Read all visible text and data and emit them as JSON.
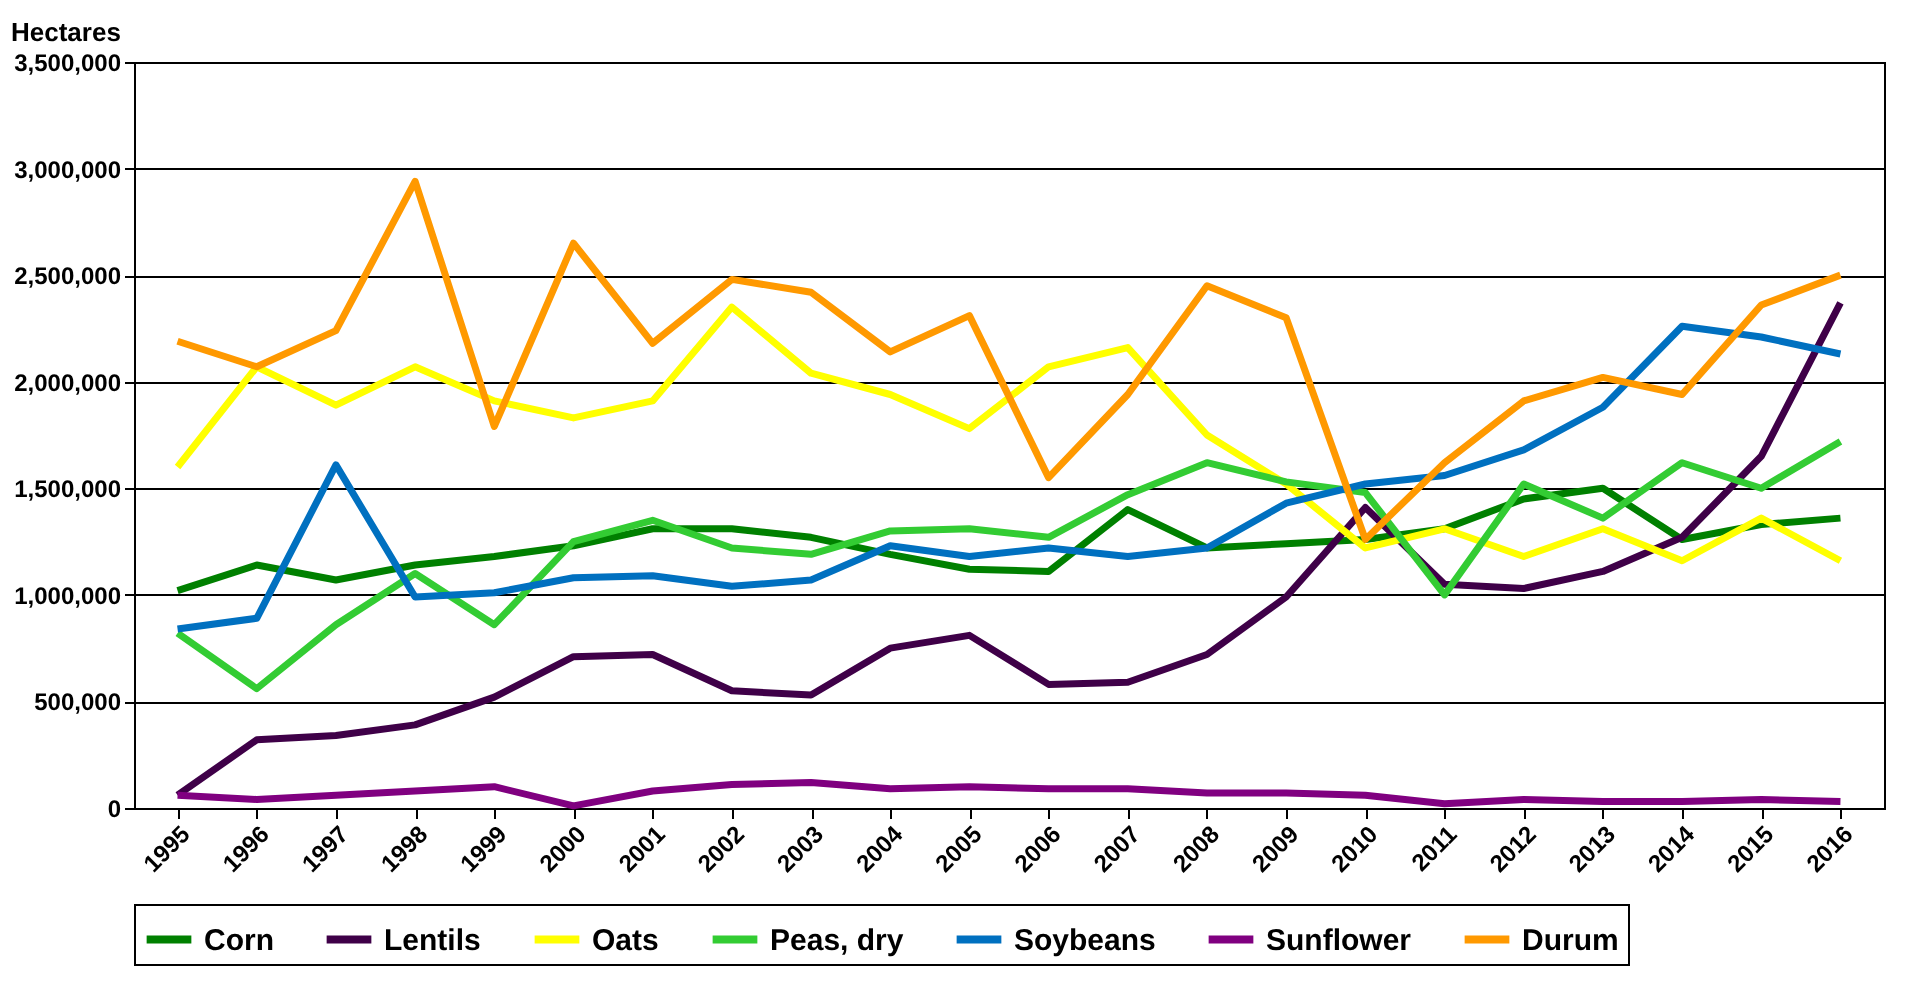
{
  "chart_data": {
    "type": "line",
    "ylabel": "Hectares",
    "categories": [
      "1995",
      "1996",
      "1997",
      "1998",
      "1999",
      "2000",
      "2001",
      "2002",
      "2003",
      "2004",
      "2005",
      "2006",
      "2007",
      "2008",
      "2009",
      "2010",
      "2011",
      "2012",
      "2013",
      "2014",
      "2015",
      "2016"
    ],
    "series": [
      {
        "name": "Corn",
        "color": "#008000",
        "values": [
          1020000,
          1140000,
          1070000,
          1140000,
          1180000,
          1230000,
          1310000,
          1310000,
          1270000,
          1190000,
          1120000,
          1110000,
          1400000,
          1220000,
          1240000,
          1260000,
          1310000,
          1450000,
          1500000,
          1260000,
          1330000,
          1360000
        ]
      },
      {
        "name": "Lentils",
        "color": "#3f0048",
        "values": [
          60000,
          320000,
          340000,
          390000,
          520000,
          710000,
          720000,
          550000,
          530000,
          750000,
          810000,
          580000,
          590000,
          720000,
          990000,
          1410000,
          1050000,
          1030000,
          1110000,
          1270000,
          1650000,
          2370000
        ]
      },
      {
        "name": "Oats",
        "color": "#ffff00",
        "values": [
          1600000,
          2070000,
          1890000,
          2070000,
          1910000,
          1830000,
          1910000,
          2350000,
          2040000,
          1940000,
          1780000,
          2070000,
          2160000,
          1750000,
          1520000,
          1220000,
          1310000,
          1180000,
          1310000,
          1160000,
          1360000,
          1160000
        ]
      },
      {
        "name": "Peas, dry",
        "color": "#33cc33",
        "values": [
          820000,
          560000,
          860000,
          1100000,
          860000,
          1250000,
          1350000,
          1220000,
          1190000,
          1300000,
          1310000,
          1270000,
          1470000,
          1620000,
          1530000,
          1480000,
          1000000,
          1520000,
          1360000,
          1620000,
          1500000,
          1720000
        ]
      },
      {
        "name": "Soybeans",
        "color": "#0070c0",
        "values": [
          840000,
          890000,
          1610000,
          990000,
          1010000,
          1080000,
          1090000,
          1040000,
          1070000,
          1230000,
          1180000,
          1220000,
          1180000,
          1220000,
          1430000,
          1520000,
          1560000,
          1680000,
          1880000,
          2260000,
          2210000,
          2130000
        ]
      },
      {
        "name": "Sunflower",
        "color": "#800080",
        "values": [
          60000,
          40000,
          60000,
          80000,
          100000,
          10000,
          80000,
          110000,
          120000,
          90000,
          100000,
          90000,
          90000,
          70000,
          70000,
          60000,
          20000,
          40000,
          30000,
          30000,
          40000,
          30000
        ]
      },
      {
        "name": "Durum",
        "color": "#ff9900",
        "values": [
          2190000,
          2070000,
          2240000,
          2940000,
          1790000,
          2650000,
          2180000,
          2480000,
          2420000,
          2140000,
          2310000,
          1550000,
          1940000,
          2450000,
          2300000,
          1260000,
          1620000,
          1910000,
          2020000,
          1940000,
          2360000,
          2500000
        ]
      }
    ],
    "ylim": [
      0,
      3500000
    ],
    "yticks": [
      0,
      {
        "value": 500000,
        "label": "500,000"
      },
      {
        "value": 1000000,
        "label": "1,000,000"
      },
      {
        "value": 1500000,
        "label": "1,500,000"
      },
      {
        "value": 2000000,
        "label": "2,000,000"
      },
      {
        "value": 2500000,
        "label": "2,500,000"
      },
      {
        "value": 3000000,
        "label": "3,000,000"
      },
      {
        "value": 3500000,
        "label": "3,500,000"
      }
    ],
    "grid": "y",
    "legend": "bottom",
    "marker": "none",
    "line_style": "solid"
  }
}
